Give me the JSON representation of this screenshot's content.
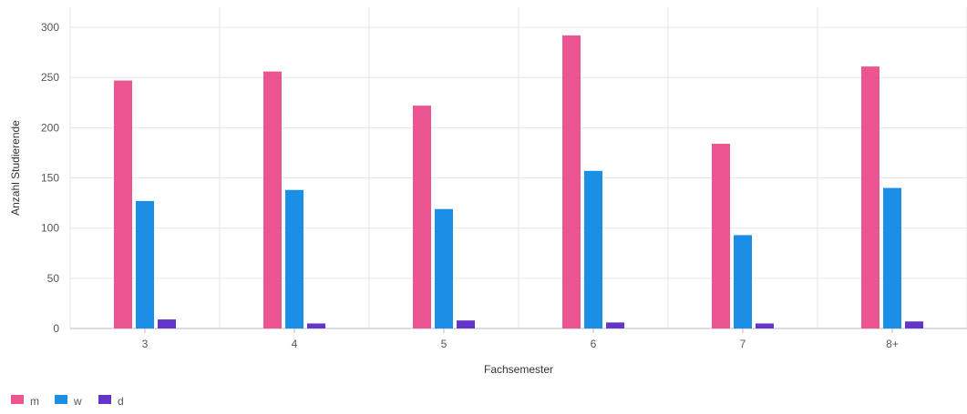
{
  "chart_data": {
    "type": "bar",
    "xlabel": "Fachsemester",
    "ylabel": "Anzahl Studierende",
    "categories": [
      "3",
      "4",
      "5",
      "6",
      "7",
      "8+"
    ],
    "ylim": [
      0,
      320
    ],
    "yticks": [
      0,
      50,
      100,
      150,
      200,
      250,
      300
    ],
    "grid": true,
    "legend_position": "bottom-left",
    "series": [
      {
        "name": "m",
        "color": "#ec5591",
        "values": [
          247,
          256,
          222,
          292,
          184,
          261
        ]
      },
      {
        "name": "w",
        "color": "#1b8fe6",
        "values": [
          127,
          138,
          119,
          157,
          93,
          140
        ]
      },
      {
        "name": "d",
        "color": "#6336c9",
        "values": [
          9,
          5,
          8,
          6,
          5,
          7
        ]
      }
    ]
  }
}
